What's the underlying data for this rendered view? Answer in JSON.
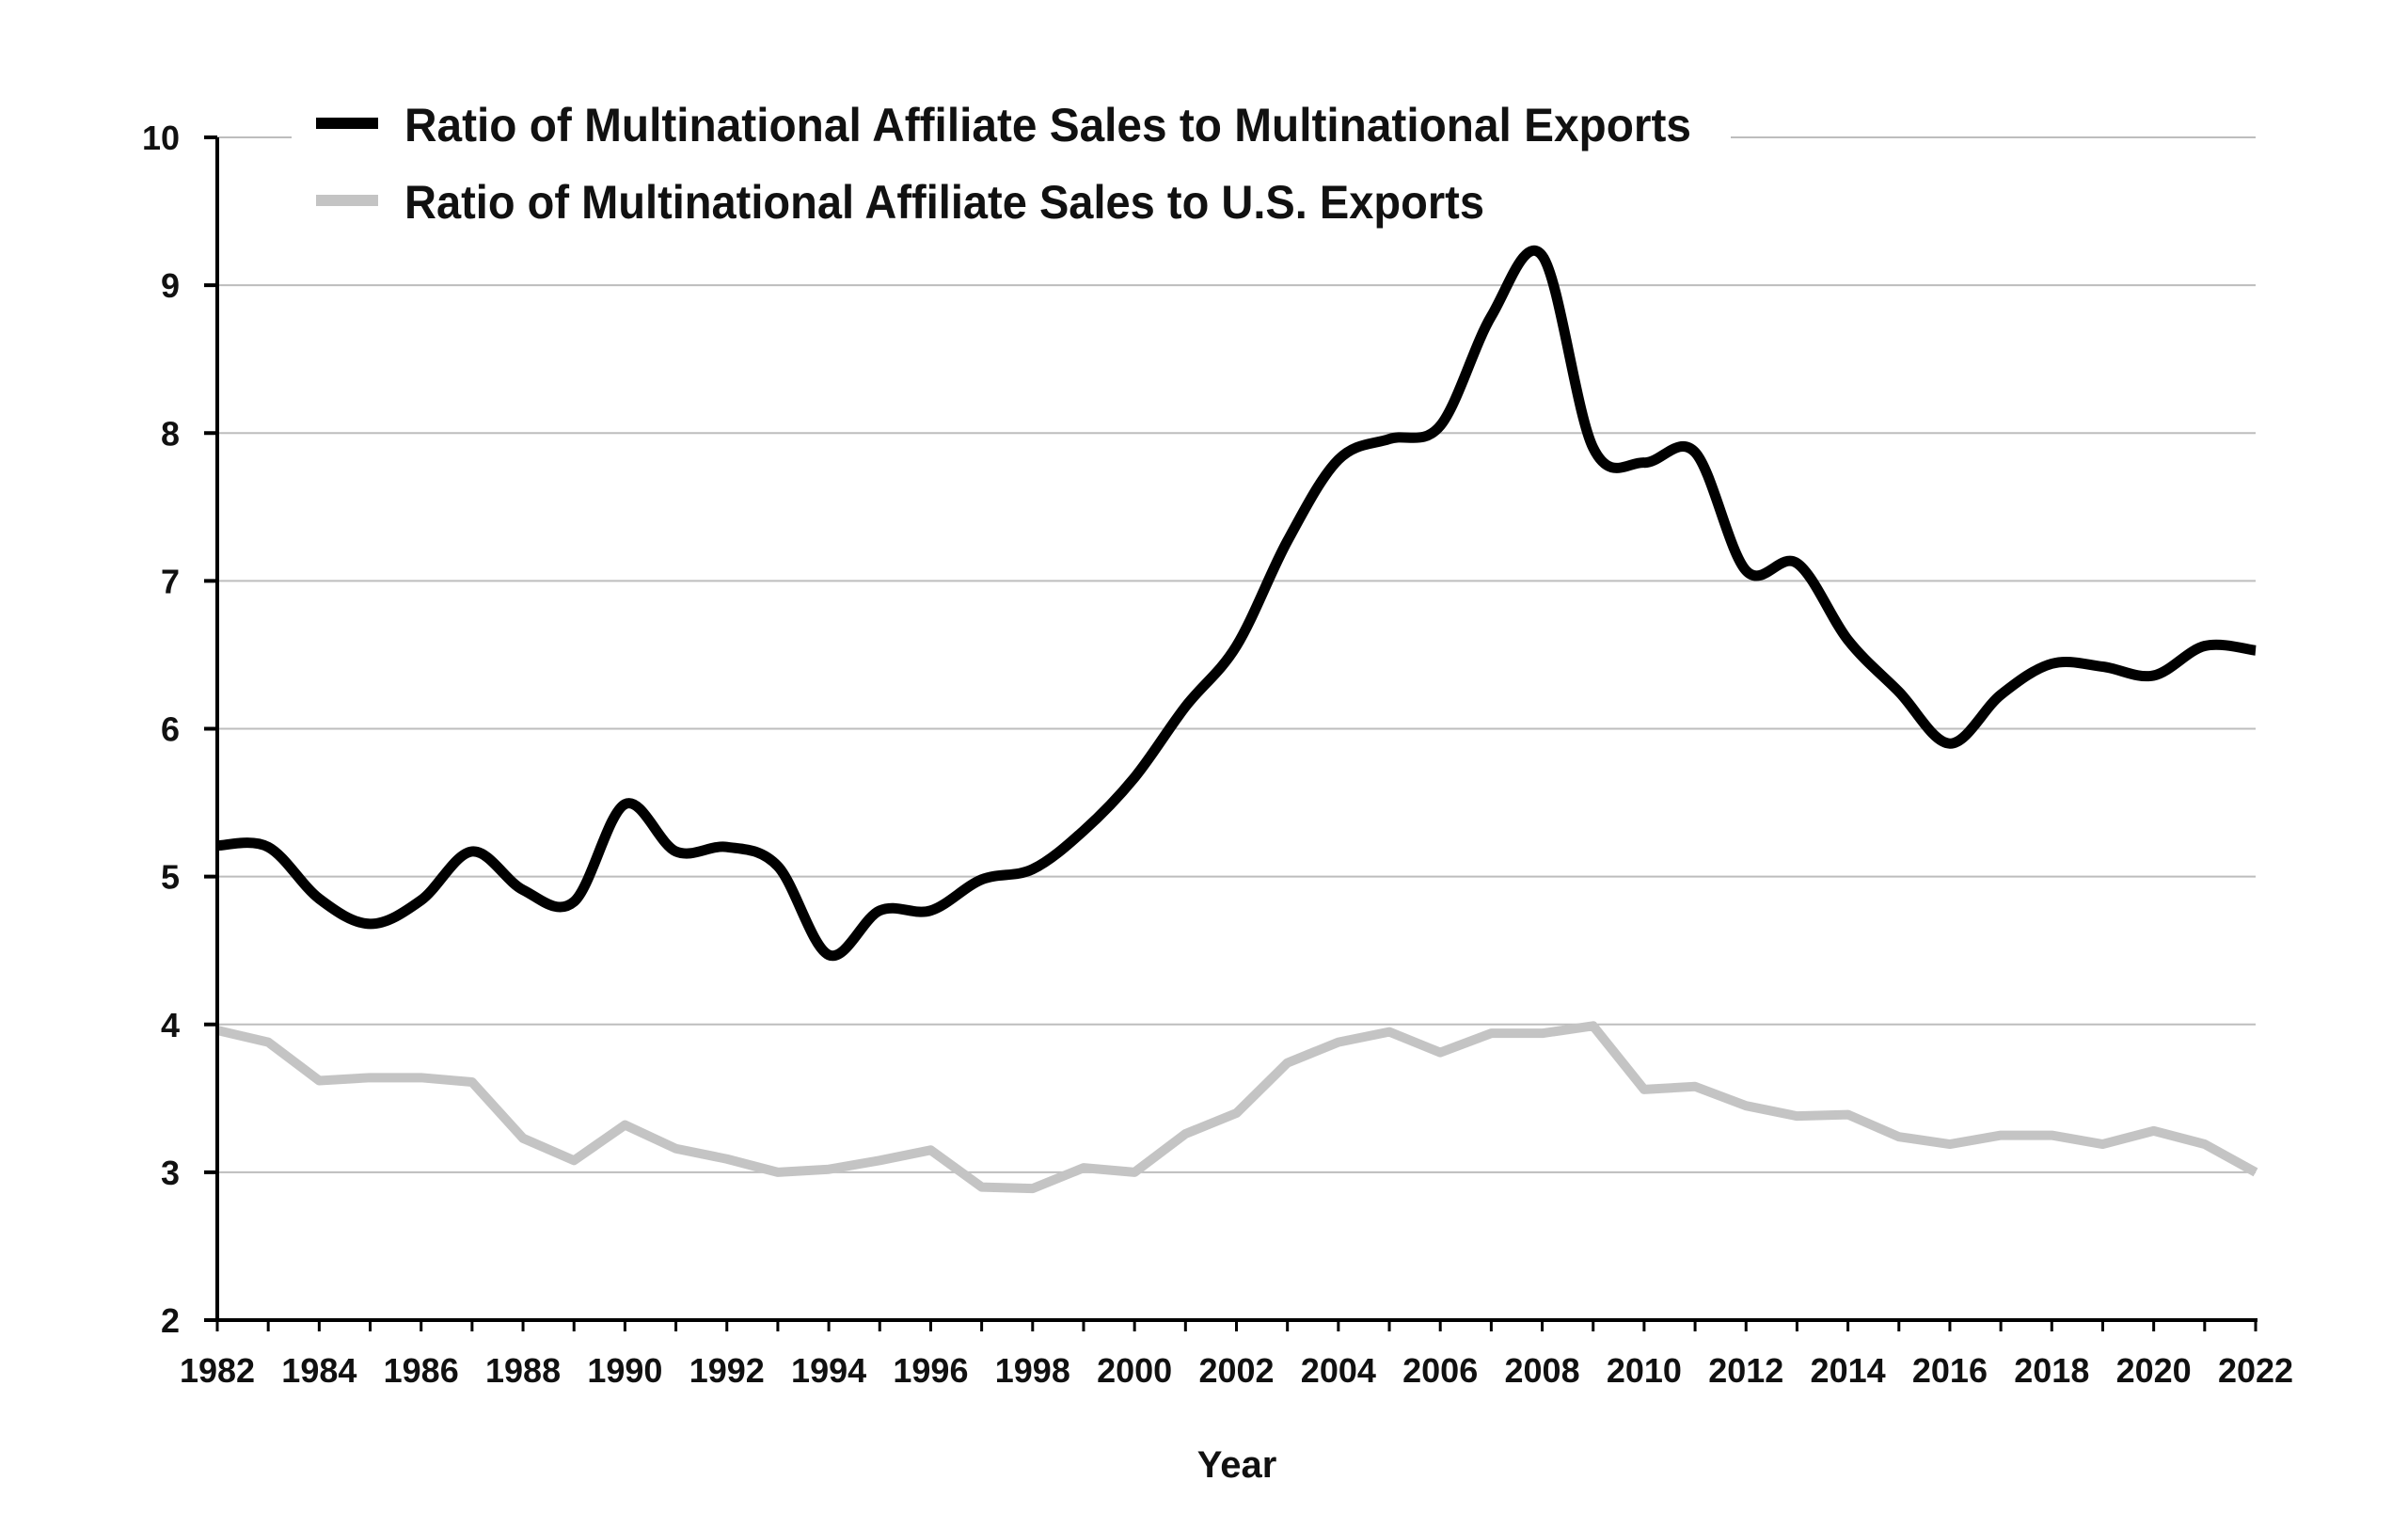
{
  "chart_data": {
    "type": "line",
    "title": "",
    "xlabel": "Year",
    "ylabel": "",
    "xlim": [
      1982,
      2022
    ],
    "ylim": [
      2,
      10
    ],
    "grid": true,
    "legend_position": "top-left",
    "x_ticks": [
      1982,
      1984,
      1986,
      1988,
      1990,
      1992,
      1994,
      1996,
      1998,
      2000,
      2002,
      2004,
      2006,
      2008,
      2010,
      2012,
      2014,
      2016,
      2018,
      2020,
      2022
    ],
    "y_ticks": [
      2,
      3,
      4,
      5,
      6,
      7,
      8,
      9,
      10
    ],
    "x": [
      1982,
      1983,
      1984,
      1985,
      1986,
      1987,
      1988,
      1989,
      1990,
      1991,
      1992,
      1993,
      1994,
      1995,
      1996,
      1997,
      1998,
      1999,
      2000,
      2001,
      2002,
      2003,
      2004,
      2005,
      2006,
      2007,
      2008,
      2009,
      2010,
      2011,
      2012,
      2013,
      2014,
      2015,
      2016,
      2017,
      2018,
      2019,
      2020,
      2021,
      2022
    ],
    "series": [
      {
        "name": "Ratio of Multinational Affiliate Sales to Multinational Exports",
        "color": "#000000",
        "values": [
          5.21,
          5.2,
          4.85,
          4.68,
          4.84,
          5.17,
          4.91,
          4.83,
          5.49,
          5.17,
          5.2,
          5.07,
          4.47,
          4.77,
          4.77,
          4.98,
          5.05,
          5.31,
          5.67,
          6.15,
          6.56,
          7.27,
          7.82,
          7.96,
          8.05,
          8.79,
          9.2,
          7.9,
          7.8,
          7.87,
          7.07,
          7.12,
          6.6,
          6.25,
          5.9,
          6.23,
          6.44,
          6.42,
          6.36,
          6.56,
          6.53
        ]
      },
      {
        "name": "Ratio of Multinational Affiliate Sales to U.S. Exports",
        "color": "#c4c4c4",
        "values": [
          3.96,
          3.88,
          3.62,
          3.64,
          3.64,
          3.61,
          3.23,
          3.08,
          3.32,
          3.16,
          3.09,
          3.0,
          3.02,
          3.08,
          3.15,
          2.9,
          2.89,
          3.03,
          3.0,
          3.26,
          3.4,
          3.74,
          3.88,
          3.95,
          3.81,
          3.94,
          3.94,
          3.99,
          3.56,
          3.58,
          3.45,
          3.38,
          3.39,
          3.24,
          3.19,
          3.25,
          3.25,
          3.19,
          3.28,
          3.19,
          3.0
        ]
      }
    ]
  }
}
